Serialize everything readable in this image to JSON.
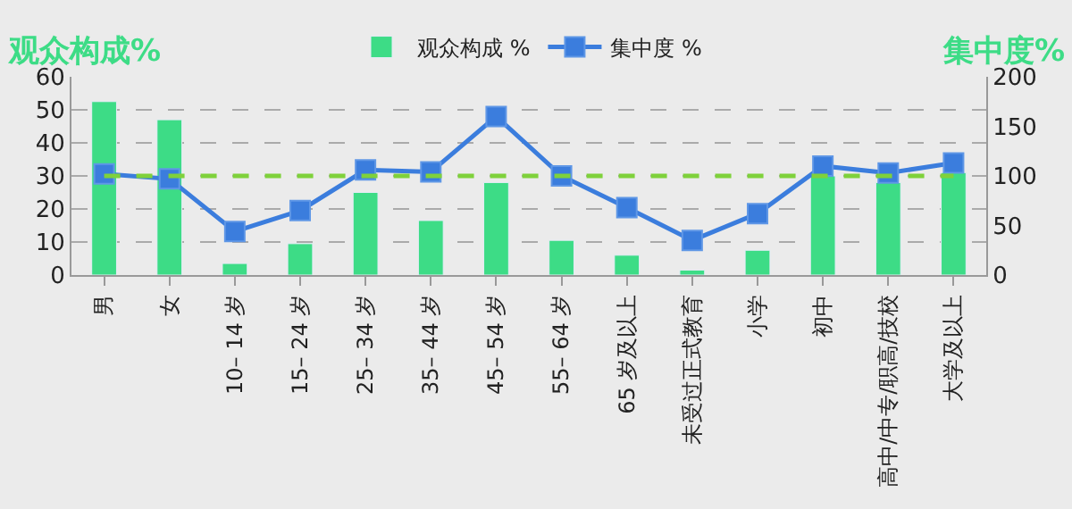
{
  "chart_data": {
    "type": "bar",
    "ylabel": "观众构成%",
    "y2label": "集中度%",
    "categories": [
      "男",
      "女",
      "10– 14 岁",
      "15– 24 岁",
      "25– 34 岁",
      "35– 44 岁",
      "45– 54 岁",
      "55– 64 岁",
      "65 岁及以上",
      "未受过正式教育",
      "小学",
      "初中",
      "高中/中专/职高/技校",
      "大学及以上"
    ],
    "series": [
      {
        "name": "观众构成 %",
        "color": "#3ddc86",
        "values": [
          52.5,
          47,
          3.5,
          9.5,
          25,
          16.5,
          28,
          10.5,
          6,
          1.5,
          7.5,
          30,
          28,
          31
        ]
      },
      {
        "name": "集中度 %",
        "type": "line",
        "axis": "y2",
        "color": "#3b7ddd",
        "marker": "square",
        "values": [
          102,
          97,
          44,
          65,
          106,
          104,
          160,
          100,
          68,
          35,
          62,
          110,
          103,
          113
        ]
      }
    ],
    "ylim": [
      0,
      60
    ],
    "yticks": [
      0,
      10,
      20,
      30,
      40,
      50,
      60
    ],
    "y2lim": [
      0,
      200
    ],
    "y2ticks": [
      0,
      50,
      100,
      150,
      200
    ],
    "ref_lines": [
      {
        "axis": "y2",
        "value": 100,
        "color": "#7fd13b",
        "line_style": "dashed"
      }
    ],
    "grid": "y",
    "legend": "top"
  }
}
